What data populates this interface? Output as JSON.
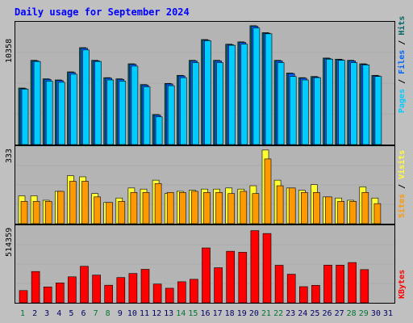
{
  "title": "Daily usage for September 2024",
  "colors": {
    "background": "#C0C0C0",
    "panel": "#B4B4B4",
    "hits": "#006666",
    "files": "#0066FF",
    "pages": "#00CCFF",
    "visits": "#FFFF33",
    "sites": "#FF9900",
    "kbytes": "#FF0000",
    "weekend_day": "#007733",
    "weekday": "#000066"
  },
  "chart_data": [
    {
      "type": "bar",
      "name": "hits-files-pages",
      "ymax_label": "10358",
      "ylim": [
        0,
        10358
      ],
      "legend": [
        "Pages",
        "Files",
        "Hits"
      ],
      "categories": [
        "1",
        "2",
        "3",
        "4",
        "5",
        "6",
        "7",
        "8",
        "9",
        "10",
        "11",
        "12",
        "13",
        "14",
        "15",
        "16",
        "17",
        "18",
        "19",
        "20",
        "21",
        "22",
        "23",
        "24",
        "25",
        "26",
        "27",
        "28",
        "29",
        "30",
        "31"
      ],
      "series": [
        {
          "name": "Hits",
          "values": [
            4900,
            7300,
            5700,
            5600,
            6300,
            8400,
            7300,
            5800,
            5700,
            7000,
            5200,
            2600,
            5300,
            6000,
            7300,
            9100,
            7300,
            8700,
            8900,
            10300,
            9700,
            7300,
            6200,
            5800,
            5900,
            7500,
            7400,
            7300,
            7000,
            6000,
            0
          ]
        },
        {
          "name": "Files",
          "values": [
            4850,
            7250,
            5650,
            5550,
            6250,
            8350,
            7250,
            5750,
            5650,
            6950,
            5150,
            2550,
            5250,
            5950,
            7250,
            9050,
            7250,
            8650,
            8850,
            10250,
            9650,
            7250,
            6150,
            5750,
            5850,
            7450,
            7350,
            7250,
            6950,
            5950,
            0
          ]
        },
        {
          "name": "Pages",
          "values": [
            4800,
            7200,
            5500,
            5400,
            6100,
            8200,
            7200,
            5600,
            5500,
            6800,
            5000,
            2400,
            5100,
            5800,
            7100,
            9000,
            7100,
            8600,
            8700,
            10100,
            9600,
            7100,
            5900,
            5600,
            5800,
            7400,
            7300,
            7100,
            6900,
            5900,
            0
          ]
        }
      ]
    },
    {
      "type": "bar",
      "name": "visits-sites",
      "ymax_label": "333",
      "ylim": [
        0,
        333
      ],
      "legend": [
        "Sites",
        "Visits"
      ],
      "categories": [
        "1",
        "2",
        "3",
        "4",
        "5",
        "6",
        "7",
        "8",
        "9",
        "10",
        "11",
        "12",
        "13",
        "14",
        "15",
        "16",
        "17",
        "18",
        "19",
        "20",
        "21",
        "22",
        "23",
        "24",
        "25",
        "26",
        "27",
        "28",
        "29",
        "30",
        "31"
      ],
      "series": [
        {
          "name": "Visits",
          "values": [
            125,
            125,
            105,
            145,
            215,
            210,
            135,
            95,
            115,
            160,
            155,
            195,
            135,
            145,
            150,
            155,
            155,
            160,
            155,
            170,
            330,
            195,
            160,
            150,
            175,
            120,
            115,
            105,
            165,
            115,
            0
          ]
        },
        {
          "name": "Sites",
          "values": [
            100,
            100,
            100,
            145,
            190,
            190,
            120,
            95,
            100,
            140,
            140,
            180,
            140,
            140,
            145,
            140,
            140,
            135,
            145,
            135,
            290,
            170,
            160,
            140,
            140,
            120,
            100,
            100,
            140,
            90,
            0
          ]
        }
      ]
    },
    {
      "type": "bar",
      "name": "kbytes",
      "ymax_label": "514359",
      "ylim": [
        0,
        514359
      ],
      "legend": [
        "KBytes"
      ],
      "categories": [
        "1",
        "2",
        "3",
        "4",
        "5",
        "6",
        "7",
        "8",
        "9",
        "10",
        "11",
        "12",
        "13",
        "14",
        "15",
        "16",
        "17",
        "18",
        "19",
        "20",
        "21",
        "22",
        "23",
        "24",
        "25",
        "26",
        "27",
        "28",
        "29",
        "30",
        "31"
      ],
      "series": [
        {
          "name": "KBytes",
          "values": [
            85000,
            217000,
            110000,
            138000,
            180000,
            253000,
            192000,
            122000,
            175000,
            203000,
            232000,
            130000,
            101000,
            146000,
            163000,
            380000,
            243000,
            357000,
            350000,
            500000,
            480000,
            260000,
            198000,
            112000,
            121000,
            261000,
            261000,
            279000,
            230000,
            0,
            0
          ]
        }
      ]
    }
  ],
  "weekend_days": [
    1,
    7,
    8,
    14,
    15,
    21,
    22,
    28,
    29
  ]
}
